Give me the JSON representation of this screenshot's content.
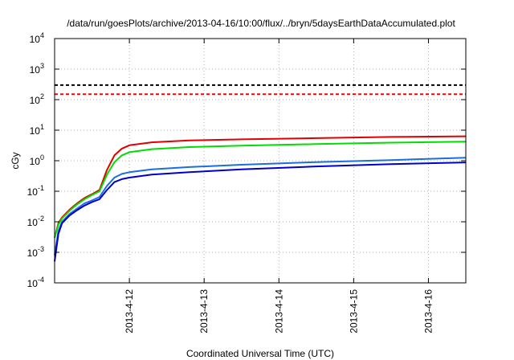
{
  "chart_data": {
    "type": "line",
    "title": "/data/run/goesPlots/archive/2013-04-16/10:00/flux/../bryn/5daysEarthDataAccumulated.plot",
    "xlabel": "Coordinated Universal Time (UTC)",
    "ylabel": "cGy",
    "y_scale": "log",
    "ylim": [
      0.0001,
      10000
    ],
    "xlim": [
      0,
      5.5
    ],
    "grid": true,
    "x_ticks": [
      {
        "x": 1,
        "label": "2013-4-12"
      },
      {
        "x": 2,
        "label": "2013-4-13"
      },
      {
        "x": 3,
        "label": "2013-4-14"
      },
      {
        "x": 4,
        "label": "2013-4-15"
      },
      {
        "x": 5,
        "label": "2013-4-16"
      }
    ],
    "y_ticks": [
      {
        "base": "10",
        "exp": "-4",
        "value": 0.0001
      },
      {
        "base": "10",
        "exp": "-3",
        "value": 0.001
      },
      {
        "base": "10",
        "exp": "-2",
        "value": 0.01
      },
      {
        "base": "10",
        "exp": "-1",
        "value": 0.1
      },
      {
        "base": "10",
        "exp": "0",
        "value": 1
      },
      {
        "base": "10",
        "exp": "1",
        "value": 10
      },
      {
        "base": "10",
        "exp": "2",
        "value": 100
      },
      {
        "base": "10",
        "exp": "3",
        "value": 1000
      },
      {
        "base": "10",
        "exp": "4",
        "value": 10000
      }
    ],
    "thresholds": [
      {
        "value": 300,
        "color": "#000000",
        "style": "dashed"
      },
      {
        "value": 150,
        "color": "#ff0000",
        "style": "dashed"
      }
    ],
    "series": [
      {
        "color": "#e00000",
        "x": [
          0,
          0.05,
          0.1,
          0.2,
          0.3,
          0.4,
          0.5,
          0.6,
          0.7,
          0.8,
          0.9,
          1.0,
          1.3,
          1.8,
          2.5,
          3.5,
          4.5,
          5.5
        ],
        "y": [
          0.003,
          0.009,
          0.014,
          0.025,
          0.04,
          0.06,
          0.08,
          0.11,
          0.5,
          1.5,
          2.5,
          3.2,
          4.0,
          4.6,
          5.0,
          5.5,
          6.0,
          6.3
        ]
      },
      {
        "color": "#00dd00",
        "x": [
          0,
          0.05,
          0.1,
          0.2,
          0.3,
          0.4,
          0.5,
          0.6,
          0.7,
          0.8,
          0.9,
          1.0,
          1.3,
          1.8,
          2.5,
          3.5,
          4.5,
          5.5
        ],
        "y": [
          0.003,
          0.008,
          0.013,
          0.023,
          0.037,
          0.055,
          0.075,
          0.1,
          0.35,
          0.9,
          1.5,
          1.9,
          2.4,
          2.8,
          3.1,
          3.5,
          3.9,
          4.2
        ]
      },
      {
        "color": "#1a6fdc",
        "x": [
          0,
          0.05,
          0.1,
          0.2,
          0.3,
          0.4,
          0.5,
          0.6,
          0.7,
          0.8,
          0.9,
          1.0,
          1.3,
          1.8,
          2.5,
          3.5,
          4.5,
          5.5
        ],
        "y": [
          0.0008,
          0.005,
          0.01,
          0.018,
          0.027,
          0.04,
          0.05,
          0.065,
          0.15,
          0.28,
          0.37,
          0.42,
          0.52,
          0.62,
          0.74,
          0.9,
          1.05,
          1.25
        ]
      },
      {
        "color": "#0000cc",
        "x": [
          0,
          0.05,
          0.1,
          0.2,
          0.3,
          0.4,
          0.5,
          0.6,
          0.7,
          0.8,
          0.9,
          1.0,
          1.3,
          1.8,
          2.5,
          3.5,
          4.5,
          5.5
        ],
        "y": [
          0.0005,
          0.004,
          0.009,
          0.016,
          0.024,
          0.034,
          0.044,
          0.055,
          0.11,
          0.2,
          0.25,
          0.28,
          0.35,
          0.42,
          0.52,
          0.65,
          0.77,
          0.88
        ]
      }
    ]
  }
}
